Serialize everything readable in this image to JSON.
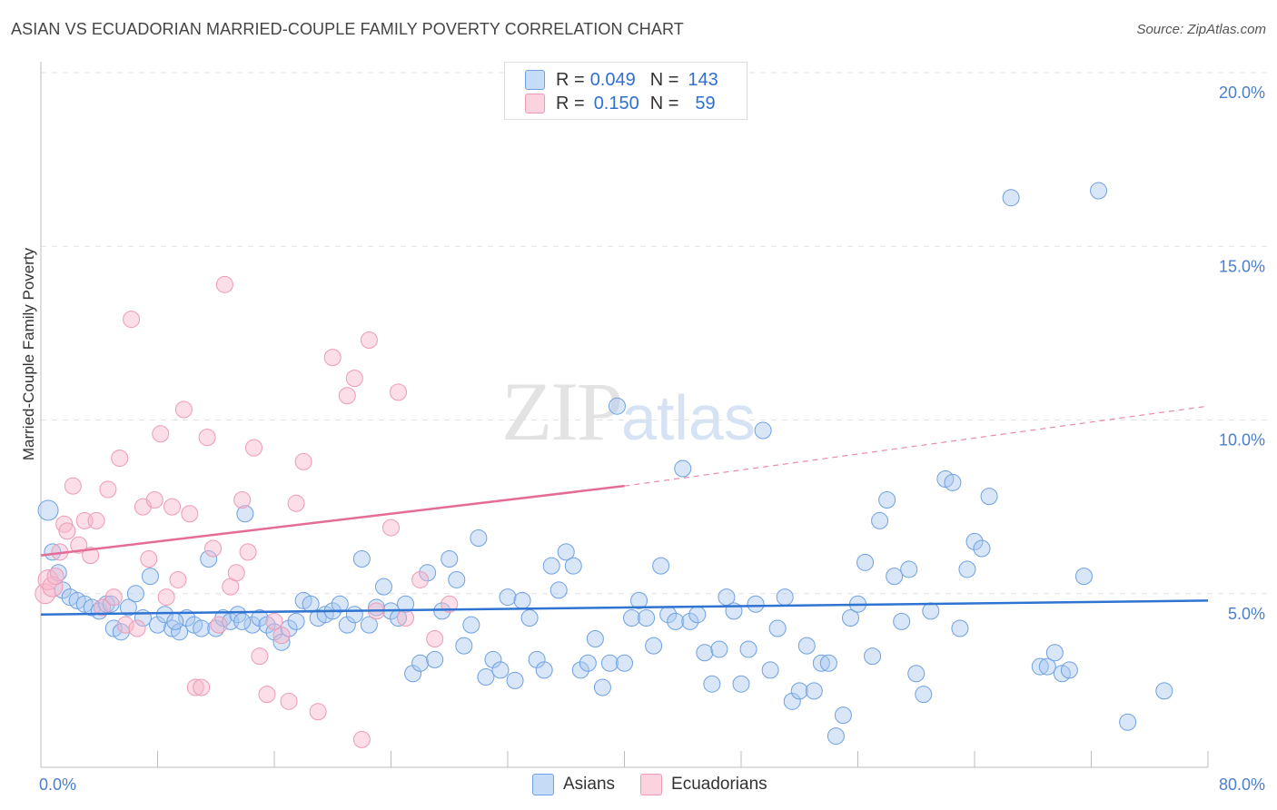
{
  "header": {
    "title": "ASIAN VS ECUADORIAN MARRIED-COUPLE FAMILY POVERTY CORRELATION CHART",
    "source": "Source: ZipAtlas.com"
  },
  "watermark": {
    "zip": "ZIP",
    "atlas": "atlas"
  },
  "legend": {
    "rows": [
      {
        "r_label": "R =",
        "r_value": "0.049",
        "n_label": "N =",
        "n_value": "143",
        "color": "#a9c8f0"
      },
      {
        "r_label": "R =",
        "r_value": "0.150",
        "n_label": "N =",
        "n_value": "59",
        "color": "#f6b6c9"
      }
    ]
  },
  "bottom_legend": [
    {
      "label": "Asians",
      "color": "#a9c8f0"
    },
    {
      "label": "Ecuadorians",
      "color": "#f6b6c9"
    }
  ],
  "chart_data": {
    "type": "scatter",
    "title": "ASIAN VS ECUADORIAN MARRIED-COUPLE FAMILY POVERTY CORRELATION CHART",
    "xlabel": "",
    "ylabel": "Married-Couple Family Poverty",
    "xlim": [
      0,
      80
    ],
    "ylim": [
      0,
      20
    ],
    "x_tick_labels": [
      "0.0%",
      "80.0%"
    ],
    "y_ticks": [
      5,
      10,
      15,
      20
    ],
    "y_tick_labels": [
      "5.0%",
      "10.0%",
      "15.0%",
      "20.0%"
    ],
    "grid": true,
    "series": [
      {
        "name": "Asians",
        "color": "#6ea1e3",
        "fill": "#a9c8f0",
        "trend": {
          "x": [
            0,
            80
          ],
          "y": [
            4.4,
            4.8
          ],
          "style": "solid",
          "color": "#2f74d0"
        },
        "points": [
          [
            0.5,
            7.4
          ],
          [
            0.8,
            6.2
          ],
          [
            1.2,
            5.6
          ],
          [
            1.5,
            5.1
          ],
          [
            2.0,
            4.9
          ],
          [
            2.5,
            4.8
          ],
          [
            3.0,
            4.7
          ],
          [
            3.5,
            4.6
          ],
          [
            4.0,
            4.5
          ],
          [
            4.5,
            4.7
          ],
          [
            5.0,
            4.0
          ],
          [
            5.5,
            3.9
          ],
          [
            6.0,
            4.6
          ],
          [
            6.5,
            5.0
          ],
          [
            7.0,
            4.3
          ],
          [
            7.5,
            5.5
          ],
          [
            8.0,
            4.1
          ],
          [
            8.5,
            4.4
          ],
          [
            9.0,
            4.0
          ],
          [
            9.5,
            3.9
          ],
          [
            10.0,
            4.3
          ],
          [
            10.5,
            4.1
          ],
          [
            11.0,
            4.0
          ],
          [
            11.5,
            6.0
          ],
          [
            12.0,
            4.0
          ],
          [
            12.5,
            4.3
          ],
          [
            13.0,
            4.2
          ],
          [
            13.5,
            4.4
          ],
          [
            14.0,
            7.3
          ],
          [
            14.5,
            4.1
          ],
          [
            15.0,
            4.3
          ],
          [
            15.5,
            4.1
          ],
          [
            16.0,
            3.9
          ],
          [
            16.5,
            3.6
          ],
          [
            17.0,
            4.0
          ],
          [
            17.5,
            4.2
          ],
          [
            18.0,
            4.8
          ],
          [
            18.5,
            4.7
          ],
          [
            19.0,
            4.3
          ],
          [
            19.5,
            4.4
          ],
          [
            20.0,
            4.5
          ],
          [
            20.5,
            4.7
          ],
          [
            21.0,
            4.1
          ],
          [
            21.5,
            4.4
          ],
          [
            22.0,
            6.0
          ],
          [
            22.5,
            4.1
          ],
          [
            23.0,
            4.6
          ],
          [
            23.5,
            5.2
          ],
          [
            24.0,
            4.5
          ],
          [
            24.5,
            4.3
          ],
          [
            25.0,
            4.7
          ],
          [
            25.5,
            2.7
          ],
          [
            26.0,
            3.0
          ],
          [
            26.5,
            5.6
          ],
          [
            27.0,
            3.1
          ],
          [
            27.5,
            4.5
          ],
          [
            28.0,
            6.0
          ],
          [
            28.5,
            5.4
          ],
          [
            29.0,
            3.5
          ],
          [
            29.5,
            4.1
          ],
          [
            30.0,
            6.6
          ],
          [
            30.5,
            2.6
          ],
          [
            31.0,
            3.1
          ],
          [
            31.5,
            2.8
          ],
          [
            32.0,
            4.9
          ],
          [
            32.5,
            2.5
          ],
          [
            33.0,
            4.8
          ],
          [
            33.5,
            4.3
          ],
          [
            34.0,
            3.1
          ],
          [
            34.5,
            2.8
          ],
          [
            35.0,
            5.8
          ],
          [
            35.5,
            5.1
          ],
          [
            36.0,
            6.2
          ],
          [
            36.5,
            5.8
          ],
          [
            37.0,
            2.8
          ],
          [
            37.5,
            3.0
          ],
          [
            38.0,
            3.7
          ],
          [
            38.5,
            2.3
          ],
          [
            39.0,
            3.0
          ],
          [
            39.5,
            10.4
          ],
          [
            40.0,
            3.0
          ],
          [
            40.5,
            4.3
          ],
          [
            41.0,
            4.8
          ],
          [
            41.5,
            4.3
          ],
          [
            42.0,
            3.5
          ],
          [
            42.5,
            5.8
          ],
          [
            43.0,
            4.4
          ],
          [
            43.5,
            4.2
          ],
          [
            44.0,
            8.6
          ],
          [
            44.5,
            4.2
          ],
          [
            45.0,
            4.4
          ],
          [
            45.5,
            3.3
          ],
          [
            46.0,
            2.4
          ],
          [
            46.5,
            3.4
          ],
          [
            47.0,
            4.9
          ],
          [
            47.5,
            4.5
          ],
          [
            48.0,
            2.4
          ],
          [
            48.5,
            3.4
          ],
          [
            49.0,
            4.7
          ],
          [
            49.5,
            9.7
          ],
          [
            50.0,
            2.8
          ],
          [
            50.5,
            4.0
          ],
          [
            51.0,
            4.9
          ],
          [
            51.5,
            1.9
          ],
          [
            52.0,
            2.2
          ],
          [
            52.5,
            3.5
          ],
          [
            53.0,
            2.2
          ],
          [
            53.5,
            3.0
          ],
          [
            54.0,
            3.0
          ],
          [
            54.5,
            0.9
          ],
          [
            55.0,
            1.5
          ],
          [
            55.5,
            4.3
          ],
          [
            56.0,
            4.7
          ],
          [
            56.5,
            5.9
          ],
          [
            57.0,
            3.2
          ],
          [
            57.5,
            7.1
          ],
          [
            58.0,
            7.7
          ],
          [
            58.5,
            5.5
          ],
          [
            59.0,
            4.2
          ],
          [
            59.5,
            5.7
          ],
          [
            60.0,
            2.7
          ],
          [
            60.5,
            2.1
          ],
          [
            61.0,
            4.5
          ],
          [
            62.0,
            8.3
          ],
          [
            62.5,
            8.2
          ],
          [
            63.0,
            4.0
          ],
          [
            63.5,
            5.7
          ],
          [
            64.0,
            6.5
          ],
          [
            64.5,
            6.3
          ],
          [
            65.0,
            7.8
          ],
          [
            66.5,
            16.4
          ],
          [
            68.5,
            2.9
          ],
          [
            69.0,
            2.9
          ],
          [
            69.5,
            3.3
          ],
          [
            70.0,
            2.7
          ],
          [
            70.5,
            2.8
          ],
          [
            71.5,
            5.5
          ],
          [
            72.5,
            16.6
          ],
          [
            74.5,
            1.3
          ],
          [
            77.0,
            2.2
          ],
          [
            4.8,
            4.7
          ],
          [
            9.2,
            4.2
          ],
          [
            13.8,
            4.2
          ]
        ]
      },
      {
        "name": "Ecuadorians",
        "color": "#ee9ab5",
        "fill": "#f6b6c9",
        "trend": {
          "x": [
            0,
            40,
            80
          ],
          "y": [
            6.1,
            8.1,
            10.4
          ],
          "style": "solid-then-dashed",
          "color": "#e46c96"
        },
        "points": [
          [
            0.3,
            5.0
          ],
          [
            0.5,
            5.4
          ],
          [
            0.8,
            5.2
          ],
          [
            1.0,
            5.5
          ],
          [
            1.3,
            6.2
          ],
          [
            1.6,
            7.0
          ],
          [
            1.8,
            6.8
          ],
          [
            2.2,
            8.1
          ],
          [
            2.6,
            6.4
          ],
          [
            3.0,
            7.1
          ],
          [
            3.4,
            6.1
          ],
          [
            3.8,
            7.1
          ],
          [
            4.2,
            4.6
          ],
          [
            4.6,
            8.0
          ],
          [
            5.0,
            4.9
          ],
          [
            5.4,
            8.9
          ],
          [
            5.8,
            4.1
          ],
          [
            6.2,
            12.9
          ],
          [
            6.6,
            4.0
          ],
          [
            7.0,
            7.5
          ],
          [
            7.4,
            6.0
          ],
          [
            7.8,
            7.7
          ],
          [
            8.2,
            9.6
          ],
          [
            8.6,
            4.9
          ],
          [
            9.0,
            7.5
          ],
          [
            9.4,
            5.4
          ],
          [
            9.8,
            10.3
          ],
          [
            10.2,
            7.3
          ],
          [
            10.6,
            2.3
          ],
          [
            11.0,
            2.3
          ],
          [
            11.4,
            9.5
          ],
          [
            11.8,
            6.3
          ],
          [
            12.2,
            4.1
          ],
          [
            12.6,
            13.9
          ],
          [
            13.0,
            5.2
          ],
          [
            13.4,
            5.6
          ],
          [
            13.8,
            7.7
          ],
          [
            14.2,
            6.2
          ],
          [
            14.6,
            9.2
          ],
          [
            15.0,
            3.2
          ],
          [
            15.5,
            2.1
          ],
          [
            16.0,
            4.2
          ],
          [
            16.5,
            3.8
          ],
          [
            17.0,
            1.9
          ],
          [
            17.5,
            7.6
          ],
          [
            18.0,
            8.8
          ],
          [
            19.0,
            1.6
          ],
          [
            20.0,
            11.8
          ],
          [
            21.0,
            10.7
          ],
          [
            21.5,
            11.2
          ],
          [
            22.0,
            0.8
          ],
          [
            22.5,
            12.3
          ],
          [
            23.0,
            4.5
          ],
          [
            24.0,
            6.9
          ],
          [
            24.5,
            10.8
          ],
          [
            25.0,
            4.3
          ],
          [
            26.0,
            5.4
          ],
          [
            27.0,
            3.7
          ],
          [
            28.0,
            4.7
          ]
        ]
      }
    ]
  }
}
